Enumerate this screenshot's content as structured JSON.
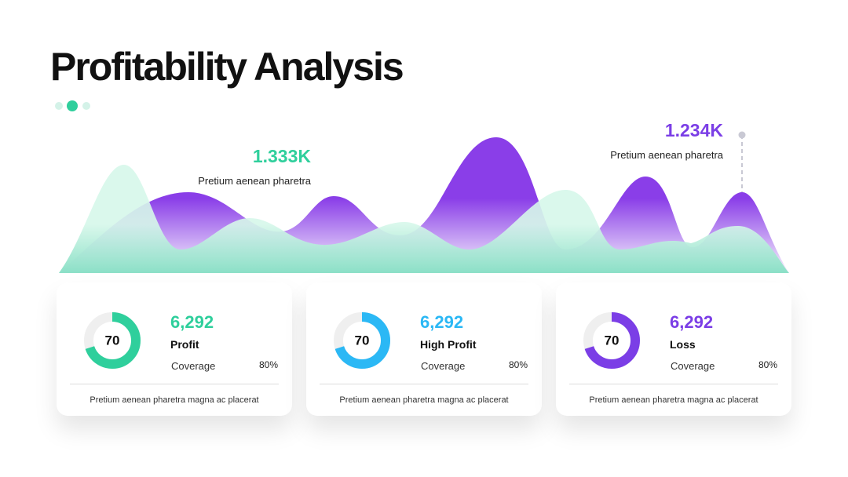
{
  "header": {
    "title": "Profitability Analysis"
  },
  "callouts": [
    {
      "value": "1.333K",
      "text": "Pretium aenean pharetra",
      "color": "#2fcf9c"
    },
    {
      "value": "1.234K",
      "text": "Pretium aenean pharetra",
      "color": "#7b3ee6"
    }
  ],
  "cards": [
    {
      "donut": 70,
      "value": "6,292",
      "label": "Profit",
      "metric": "Coverage",
      "metric_value": "80%",
      "footer": "Pretium aenean pharetra magna ac placerat",
      "color": "#2fcf9c"
    },
    {
      "donut": 70,
      "value": "6,292",
      "label": "High Profit",
      "metric": "Coverage",
      "metric_value": "80%",
      "footer": "Pretium aenean pharetra magna ac placerat",
      "color": "#2bb8f5"
    },
    {
      "donut": 70,
      "value": "6,292",
      "label": "Loss",
      "metric": "Coverage",
      "metric_value": "80%",
      "footer": "Pretium aenean pharetra magna ac placerat",
      "color": "#7b3ee6"
    }
  ]
}
